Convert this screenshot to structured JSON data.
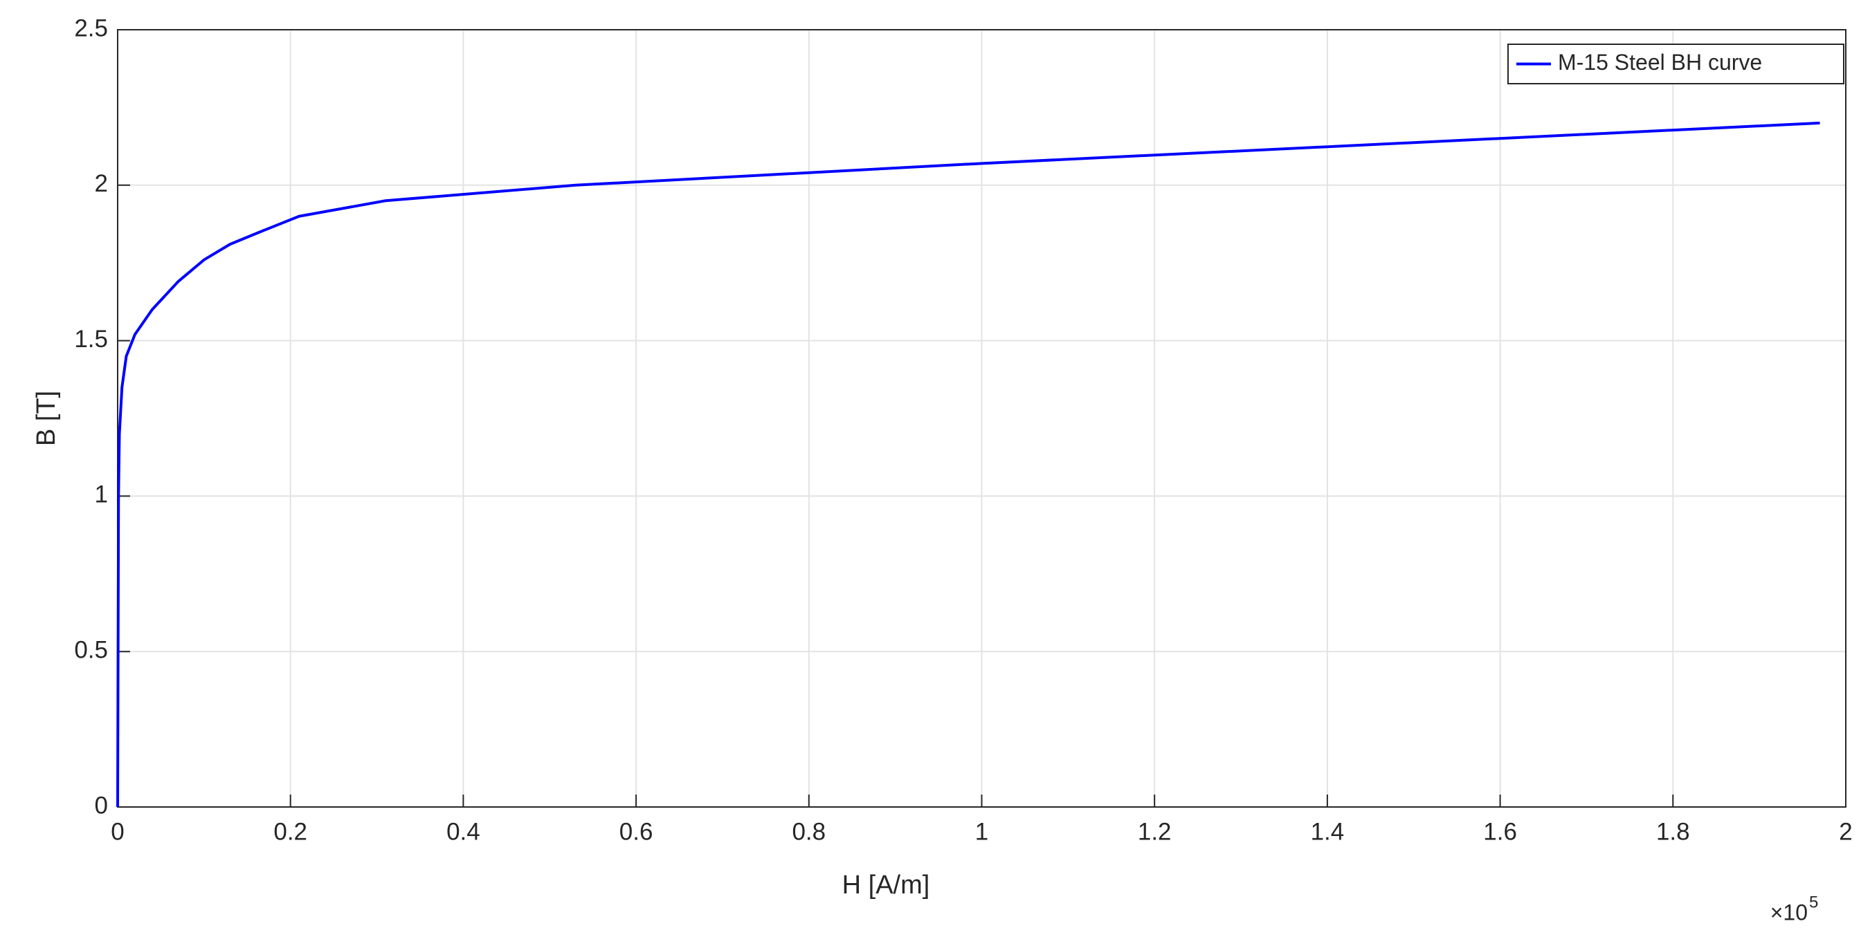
{
  "chart_data": {
    "type": "line",
    "x_label": "H [A/m]",
    "y_label": "B [T]",
    "x_multiplier": {
      "base": "×10",
      "exponent": "5"
    },
    "x": [
      0,
      0.0005,
      0.001,
      0.002,
      0.005,
      0.01,
      0.02,
      0.04,
      0.07,
      0.1,
      0.13,
      0.165,
      0.21,
      0.31,
      0.53,
      1.0,
      1.97
    ],
    "series": [
      {
        "name": "M-15 Steel BH curve",
        "color": "#0000ff",
        "values": [
          0,
          0.5,
          1.0,
          1.2,
          1.35,
          1.45,
          1.52,
          1.6,
          1.69,
          1.76,
          1.81,
          1.85,
          1.9,
          1.95,
          2.0,
          2.07,
          2.2
        ]
      }
    ],
    "xlim": [
      0,
      2
    ],
    "xticks": [
      0,
      0.2,
      0.4,
      0.6,
      0.8,
      1,
      1.2,
      1.4,
      1.6,
      1.8,
      2
    ],
    "ylim": [
      0,
      2.5
    ],
    "yticks": [
      0,
      0.5,
      1,
      1.5,
      2,
      2.5
    ],
    "grid": true,
    "legend": "top-right"
  }
}
